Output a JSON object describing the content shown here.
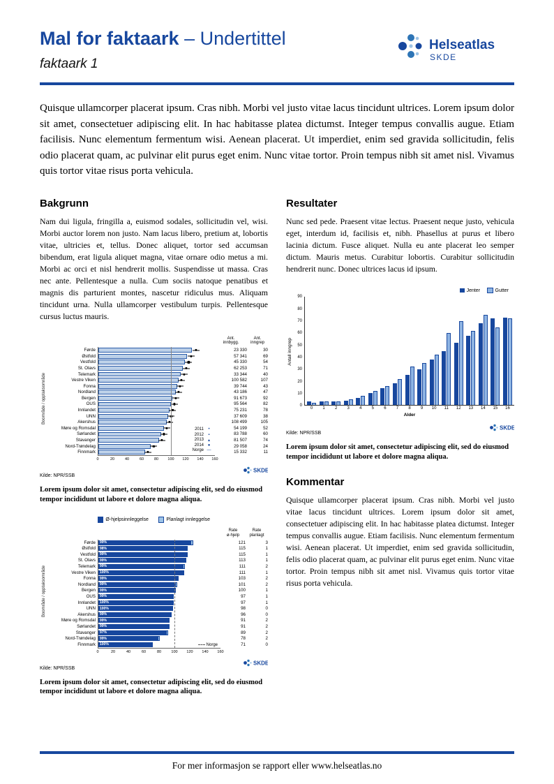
{
  "header": {
    "title_bold": "Mal for faktaark",
    "title_rest": " – Undertittel",
    "subtitle": "faktaark 1",
    "logo": {
      "name": "Helseatlas",
      "sub": "SKDE"
    }
  },
  "intro": "Quisque ullamcorper placerat ipsum. Cras nibh. Morbi vel justo vitae lacus tincidunt ultrices. Lorem ipsum dolor sit amet, consectetuer adipiscing elit. In hac habitasse platea dictumst. Integer tempus convallis augue. Etiam facilisis. Nunc elementum fermentum wisi. Aenean placerat. Ut imperdiet, enim sed gravida sollicitudin, felis odio placerat quam, ac pulvinar elit purus eget enim. Nunc vitae tortor. Proin tempus nibh sit amet nisl. Vivamus quis tortor vitae risus porta vehicula.",
  "sections": {
    "bakgrunn": {
      "heading": "Bakgrunn",
      "body": "Nam dui ligula, fringilla a, euismod sodales, sollicitudin vel, wisi. Morbi auctor lorem non justo. Nam lacus libero, pretium at, lobortis vitae, ultricies et, tellus. Donec aliquet, tortor sed accumsan bibendum, erat ligula aliquet magna, vitae ornare odio metus a mi. Morbi ac orci et nisl hendrerit mollis. Suspendisse ut massa. Cras nec ante. Pellentesque a nulla. Cum sociis natoque penatibus et magnis dis parturient montes, nascetur ridiculus mus. Aliquam tincidunt urna. Nulla ullamcorper vestibulum turpis. Pellentesque cursus luctus mauris."
    },
    "resultater": {
      "heading": "Resultater",
      "body": "Nunc sed pede. Praesent vitae lectus. Praesent neque justo, vehicula eget, interdum id, facilisis et, nibh. Phasellus at purus et libero lacinia dictum. Fusce aliquet. Nulla eu ante placerat leo semper dictum. Mauris metus. Curabitur lobortis. Curabitur sollicitudin hendrerit nunc. Donec ultrices lacus id ipsum."
    },
    "kommentar": {
      "heading": "Kommentar",
      "body": "Quisque ullamcorper placerat ipsum. Cras nibh. Morbi vel justo vitae lacus tincidunt ultrices. Lorem ipsum dolor sit amet, consectetuer adipiscing elit. In hac habitasse platea dictumst. Integer tempus convallis augue. Etiam facilisis. Nunc elementum fermentum wisi. Aenean placerat. Ut imperdiet, enim sed gravida sollicitudin, felis odio placerat quam, ac pulvinar elit purus eget enim. Nunc vitae tortor. Proin tempus nibh sit amet nisl. Vivamus quis tortor vitae risus porta vehicula."
    }
  },
  "captions": {
    "chart1": "Lorem ipsum dolor sit amet, consectetur adipiscing elit, sed do eiusmod tempor incididunt ut labore et dolore magna aliqua.",
    "chart2": "Lorem ipsum dolor sit amet, consectetur adipiscing elit, sed do eiusmod tempor incididunt ut labore et dolore magna aliqua.",
    "chart3": "Lorem ipsum dolor sit amet, consectetur adipiscing elit, sed do eiusmod tempor incididunt ut labore et dolore magna aliqua."
  },
  "footer": {
    "text": "For mer informasjon se rapport eller www.helseatlas.no"
  },
  "colors": {
    "brand_blue": "#17479e",
    "light_bar": "#bcd0e8",
    "gutter_bar": "#8eb4e3",
    "planlagt_bar": "#9dc3e6"
  },
  "chart_data": [
    {
      "id": "chart1",
      "type": "bar",
      "orientation": "horizontal",
      "ylabel": "Boområde / opptaksområde",
      "col_headers": [
        "Ant.\ninnbygg.",
        "Ant.\ninngrep"
      ],
      "xlim": [
        0,
        160
      ],
      "xticks": [
        0,
        20,
        40,
        60,
        80,
        100,
        120,
        140,
        160
      ],
      "norge": 100,
      "source": "Kilde: NPR/SSB",
      "legend": [
        {
          "label": "2011",
          "glyph": "•"
        },
        {
          "label": "2012",
          "glyph": "▪"
        },
        {
          "label": "2013",
          "glyph": "▴"
        },
        {
          "label": "2014",
          "glyph": "●"
        },
        {
          "label": "Norge",
          "glyph": "—"
        }
      ],
      "rows": [
        {
          "label": "Førde",
          "value": 128,
          "marker": 134,
          "innbygg": "23 330",
          "inngrep": "30"
        },
        {
          "label": "Østfold",
          "value": 122,
          "marker": 127,
          "innbygg": "57 341",
          "inngrep": "69"
        },
        {
          "label": "Vestfold",
          "value": 119,
          "marker": 124,
          "innbygg": "45 330",
          "inngrep": "54"
        },
        {
          "label": "St. Olavs",
          "value": 116,
          "marker": 121,
          "innbygg": "62 253",
          "inngrep": "71"
        },
        {
          "label": "Telemark",
          "value": 113,
          "marker": 118,
          "innbygg": "33 344",
          "inngrep": "40"
        },
        {
          "label": "Vestre Viken",
          "value": 110,
          "marker": 114,
          "innbygg": "100 582",
          "inngrep": "107"
        },
        {
          "label": "Fonna",
          "value": 108,
          "marker": 112,
          "innbygg": "39 744",
          "inngrep": "43"
        },
        {
          "label": "Nordland",
          "value": 106,
          "marker": 110,
          "innbygg": "43 186",
          "inngrep": "47"
        },
        {
          "label": "Bergen",
          "value": 102,
          "marker": 106,
          "innbygg": "91 673",
          "inngrep": "92"
        },
        {
          "label": "OUS",
          "value": 100,
          "marker": 104,
          "innbygg": "95 564",
          "inngrep": "82"
        },
        {
          "label": "Innlandet",
          "value": 98,
          "marker": 102,
          "innbygg": "75 231",
          "inngrep": "78"
        },
        {
          "label": "UNN",
          "value": 96,
          "marker": 100,
          "innbygg": "37 609",
          "inngrep": "38"
        },
        {
          "label": "Akershus",
          "value": 94,
          "marker": 98,
          "innbygg": "108 499",
          "inngrep": "105"
        },
        {
          "label": "Møre og Romsdal",
          "value": 90,
          "marker": 94,
          "innbygg": "54 199",
          "inngrep": "52"
        },
        {
          "label": "Sørlandet",
          "value": 86,
          "marker": 90,
          "innbygg": "83 788",
          "inngrep": "60"
        },
        {
          "label": "Stavanger",
          "value": 83,
          "marker": 87,
          "innbygg": "81 507",
          "inngrep": "74"
        },
        {
          "label": "Nord-Trøndelag",
          "value": 72,
          "marker": 76,
          "innbygg": "29 058",
          "inngrep": "24"
        },
        {
          "label": "Finnmark",
          "value": 64,
          "marker": 68,
          "innbygg": "15 332",
          "inngrep": "11"
        }
      ]
    },
    {
      "id": "chart2",
      "type": "bar",
      "orientation": "horizontal-stacked",
      "ylabel": "Boområde / opptaksområde",
      "col_headers": [
        "Rate\nø-hjelp",
        "Rate\nplanlagt"
      ],
      "xlim": [
        0,
        160
      ],
      "xticks": [
        0,
        20,
        40,
        60,
        80,
        100,
        120,
        140,
        160
      ],
      "norge": 100,
      "norge_label": "Norge",
      "source": "Kilde: NPR/SSB",
      "legend": [
        {
          "label": "Ø-hjelpsinnleggelse",
          "color": "#17479e"
        },
        {
          "label": "Planlagt innleggelse",
          "color": "#9dc3e6"
        }
      ],
      "rows": [
        {
          "label": "Førde",
          "pct": "99%",
          "rate_ohjelp": 121,
          "rate_planlagt": 3
        },
        {
          "label": "Østfold",
          "pct": "98%",
          "rate_ohjelp": 115,
          "rate_planlagt": 1
        },
        {
          "label": "Vestfold",
          "pct": "99%",
          "rate_ohjelp": 115,
          "rate_planlagt": 1
        },
        {
          "label": "St. Olavs",
          "pct": "99%",
          "rate_ohjelp": 113,
          "rate_planlagt": 1
        },
        {
          "label": "Telemark",
          "pct": "99%",
          "rate_ohjelp": 111,
          "rate_planlagt": 2
        },
        {
          "label": "Vestre Viken",
          "pct": "100%",
          "rate_ohjelp": 111,
          "rate_planlagt": 1
        },
        {
          "label": "Fonna",
          "pct": "99%",
          "rate_ohjelp": 103,
          "rate_planlagt": 2
        },
        {
          "label": "Nordland",
          "pct": "99%",
          "rate_ohjelp": 101,
          "rate_planlagt": 2
        },
        {
          "label": "Bergen",
          "pct": "99%",
          "rate_ohjelp": 100,
          "rate_planlagt": 1
        },
        {
          "label": "OUS",
          "pct": "99%",
          "rate_ohjelp": 97,
          "rate_planlagt": 1
        },
        {
          "label": "Innlandet",
          "pct": "100%",
          "rate_ohjelp": 97,
          "rate_planlagt": 1
        },
        {
          "label": "UNN",
          "pct": "100%",
          "rate_ohjelp": 98,
          "rate_planlagt": 0
        },
        {
          "label": "Akershus",
          "pct": "99%",
          "rate_ohjelp": 96,
          "rate_planlagt": 0
        },
        {
          "label": "Møre og Romsdal",
          "pct": "99%",
          "rate_ohjelp": 91,
          "rate_planlagt": 2
        },
        {
          "label": "Sørlandet",
          "pct": "99%",
          "rate_ohjelp": 91,
          "rate_planlagt": 2
        },
        {
          "label": "Stavanger",
          "pct": "97%",
          "rate_ohjelp": 89,
          "rate_planlagt": 2
        },
        {
          "label": "Nord-Trøndelag",
          "pct": "99%",
          "rate_ohjelp": 78,
          "rate_planlagt": 2
        },
        {
          "label": "Finnmark",
          "pct": "100%",
          "rate_ohjelp": 71,
          "rate_planlagt": 0
        }
      ]
    },
    {
      "id": "chart3",
      "type": "bar",
      "orientation": "vertical-grouped",
      "xlabel": "Alder",
      "ylabel": "Antall inngrep",
      "ylim": [
        0,
        90
      ],
      "yticks": [
        0,
        10,
        20,
        30,
        40,
        50,
        60,
        70,
        80,
        90
      ],
      "categories": [
        0,
        1,
        2,
        3,
        4,
        5,
        6,
        7,
        8,
        9,
        10,
        11,
        12,
        13,
        14,
        15,
        16
      ],
      "series": [
        {
          "name": "Jenter",
          "color": "#17479e",
          "values": [
            3,
            3,
            3,
            4,
            6,
            10,
            14,
            18,
            25,
            30,
            38,
            45,
            52,
            58,
            68,
            72,
            73
          ]
        },
        {
          "name": "Gutter",
          "color": "#8eb4e3",
          "values": [
            2,
            3,
            3,
            5,
            8,
            12,
            16,
            22,
            32,
            35,
            42,
            60,
            70,
            62,
            75,
            65,
            72
          ]
        }
      ],
      "source": "Kilde: NPR/SSB",
      "legend_position": "top-right",
      "grid": false
    }
  ]
}
